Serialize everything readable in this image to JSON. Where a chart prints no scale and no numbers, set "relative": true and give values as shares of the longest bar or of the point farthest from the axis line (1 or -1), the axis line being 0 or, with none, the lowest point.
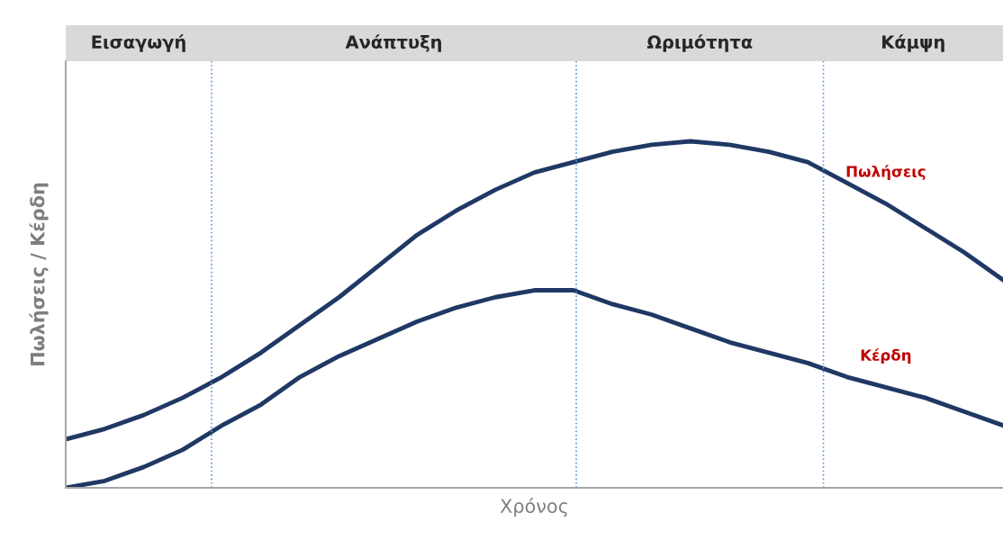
{
  "chart_data": {
    "type": "line",
    "relative": true,
    "xlabel": "Χρόνος",
    "ylabel": "Πωλήσεις / Κέρδη",
    "categories": [
      null,
      null,
      null,
      null,
      null,
      null,
      null,
      null,
      null,
      null,
      null,
      null,
      null,
      null,
      null,
      null,
      null,
      null,
      null,
      null,
      null,
      null,
      null,
      null,
      null
    ],
    "series": [
      {
        "name": "Πωλήσεις",
        "color": "#203864",
        "values": [
          0.14,
          0.17,
          0.21,
          0.26,
          0.32,
          0.39,
          0.47,
          0.55,
          0.64,
          0.73,
          0.8,
          0.86,
          0.91,
          0.94,
          0.97,
          0.99,
          1.0,
          0.99,
          0.97,
          0.94,
          0.88,
          0.82,
          0.75,
          0.68,
          0.6
        ]
      },
      {
        "name": "Κέρδη",
        "color": "#203864",
        "values": [
          0.0,
          0.02,
          0.06,
          0.11,
          0.18,
          0.24,
          0.32,
          0.38,
          0.43,
          0.48,
          0.52,
          0.55,
          0.57,
          0.57,
          0.53,
          0.5,
          0.46,
          0.42,
          0.39,
          0.36,
          0.32,
          0.29,
          0.26,
          0.22,
          0.18
        ]
      }
    ],
    "annotations": [
      "Εισαγωγή",
      "Ανάπτυξη",
      "Ωριμότητα",
      "Κάμψη"
    ],
    "legend": false,
    "marker": "none",
    "line_style": "solid"
  }
}
